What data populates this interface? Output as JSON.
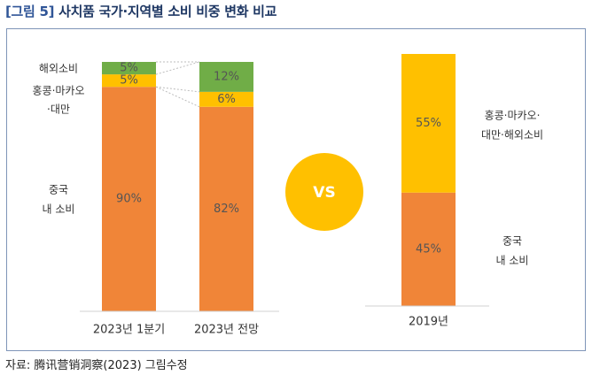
{
  "header": {
    "figure_label": "[그림 5]",
    "title": "사치품 국가·지역별 소비 비중 변화 비교"
  },
  "footer": {
    "source": "자료: 腾讯营销洞察(2023) 그림수정"
  },
  "colors": {
    "china": "#f08538",
    "hk_macau_taiwan": "#ffc000",
    "overseas": "#70ad47",
    "vs_circle": "#ffc000",
    "title": "#1f3864",
    "frame": "#7f95b8"
  },
  "vs_label": "VS",
  "chart_data": [
    {
      "type": "bar",
      "stacked": true,
      "categories": [
        "2023년 1분기",
        "2023년 전망"
      ],
      "series": [
        {
          "name": "중국 내 소비",
          "values": [
            90,
            82
          ],
          "labels": [
            "90%",
            "82%"
          ],
          "color": "#f08538"
        },
        {
          "name": "홍콩·마카오·대만",
          "values": [
            5,
            6
          ],
          "labels": [
            "5%",
            "6%"
          ],
          "color": "#ffc000"
        },
        {
          "name": "해외소비",
          "values": [
            5,
            12
          ],
          "labels": [
            "5%",
            "12%"
          ],
          "color": "#70ad47"
        }
      ],
      "ylim": [
        0,
        100
      ],
      "grid": false,
      "left_labels": {
        "china": [
          "중국",
          "내 소비"
        ],
        "hk": [
          "홍콩·마카오",
          "·대만"
        ],
        "overseas": [
          "해외소비"
        ]
      }
    },
    {
      "type": "bar",
      "stacked": true,
      "categories": [
        "2019년"
      ],
      "series": [
        {
          "name": "중국 내 소비",
          "values": [
            45
          ],
          "labels": [
            "45%"
          ],
          "color": "#f08538"
        },
        {
          "name": "홍콩·마카오·대만·해외소비",
          "values": [
            55
          ],
          "labels": [
            "55%"
          ],
          "color": "#ffc000"
        }
      ],
      "ylim": [
        0,
        100
      ],
      "grid": false,
      "right_labels": {
        "china": [
          "중국",
          "내 소비"
        ],
        "other": [
          "홍콩·마카오·",
          "대만·해외소비"
        ]
      }
    }
  ]
}
